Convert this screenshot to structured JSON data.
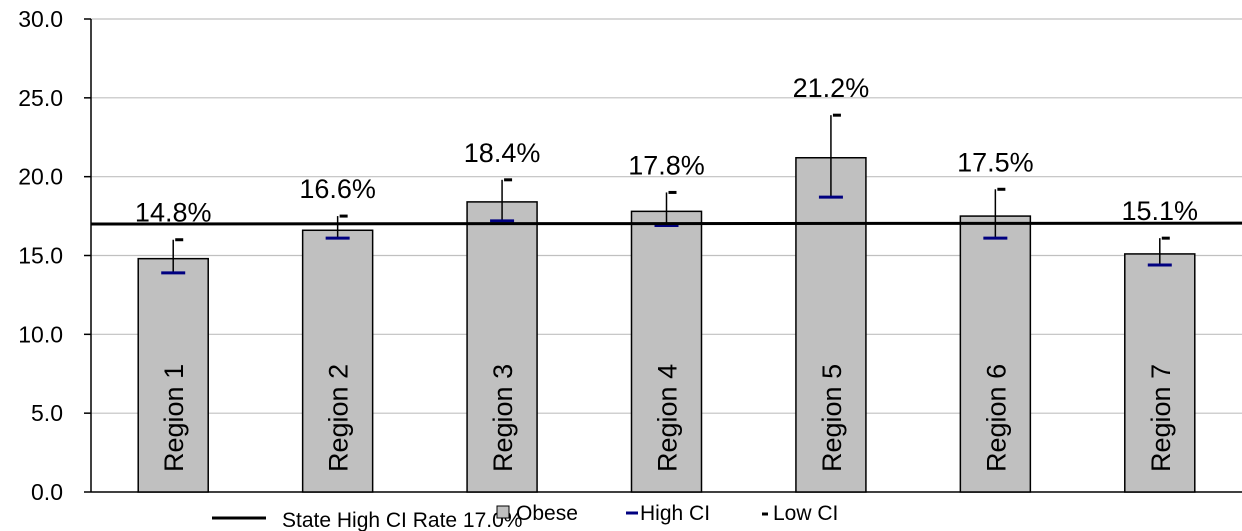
{
  "chart_data": {
    "type": "bar",
    "categories": [
      "Region 1",
      "Region 2",
      "Region 3",
      "Region 4",
      "Region 5",
      "Region 6",
      "Region 7"
    ],
    "series": [
      {
        "name": "Obese",
        "values": [
          14.8,
          16.6,
          18.4,
          17.8,
          21.2,
          17.5,
          15.1
        ],
        "color": "#c0c0c0"
      },
      {
        "name": "High CI",
        "values": [
          13.9,
          16.1,
          17.2,
          16.9,
          18.7,
          16.1,
          14.4
        ],
        "color": "#000080"
      },
      {
        "name": "Low CI",
        "values": [
          16.0,
          17.5,
          19.8,
          19.0,
          23.9,
          19.2,
          16.1
        ],
        "color": "#000000"
      }
    ],
    "data_labels": [
      "14.8%",
      "16.6%",
      "18.4%",
      "17.8%",
      "21.2%",
      "17.5%",
      "15.1%"
    ],
    "reference_line": {
      "name": "State High CI Rate 17.0%",
      "value": 17.0,
      "color": "#000000"
    },
    "ylim": [
      0,
      30
    ],
    "yticks": [
      "0.0",
      "5.0",
      "10.0",
      "15.0",
      "20.0",
      "25.0",
      "30.0"
    ],
    "ytick_values": [
      0,
      5,
      10,
      15,
      20,
      25,
      30
    ],
    "grid": true,
    "grid_color": "#c0c0c0",
    "category_label_placement": "inside bars, rotated vertical",
    "legend_placement": "bottom",
    "legend": {
      "line_label": "State High CI Rate 17.0%",
      "bar_label": "Obese",
      "high_label": "High CI",
      "low_label": "Low CI"
    }
  }
}
